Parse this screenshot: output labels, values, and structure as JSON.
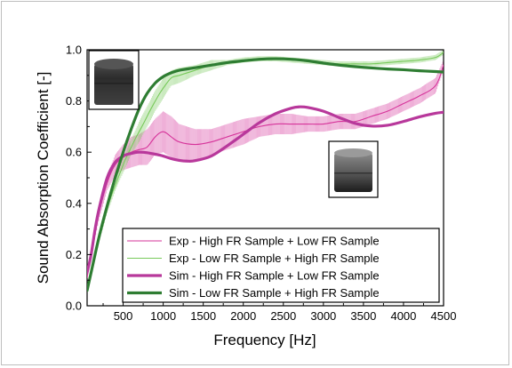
{
  "chart_data": {
    "type": "line",
    "title": "",
    "xlabel": "Frequency [Hz]",
    "ylabel": "Sound Absorption Coefficient [-]",
    "xlim": [
      50,
      4500
    ],
    "ylim": [
      0.0,
      1.0
    ],
    "xticks": [
      500,
      1000,
      1500,
      2000,
      2500,
      3000,
      3500,
      4000,
      4500
    ],
    "xtick_labels": [
      "500",
      "1000",
      "1500",
      "2000",
      "2500",
      "3000",
      "3500",
      "4000",
      "4500"
    ],
    "yticks": [
      0.0,
      0.2,
      0.4,
      0.6,
      0.8,
      1.0
    ],
    "ytick_labels": [
      "0.0",
      "0.2",
      "0.4",
      "0.6",
      "0.8",
      "1.0"
    ],
    "legend_position": "bottom-right",
    "series": [
      {
        "name": "Exp - High FR Sample + Low FR Sample",
        "color": "#d6339a",
        "style": "thin",
        "x": [
          50,
          100,
          200,
          300,
          400,
          500,
          600,
          700,
          800,
          900,
          1000,
          1100,
          1200,
          1400,
          1600,
          1800,
          2000,
          2200,
          2400,
          2600,
          2800,
          3000,
          3200,
          3400,
          3600,
          3800,
          4000,
          4200,
          4400,
          4500
        ],
        "y": [
          0.11,
          0.2,
          0.36,
          0.48,
          0.55,
          0.58,
          0.6,
          0.61,
          0.62,
          0.66,
          0.68,
          0.66,
          0.64,
          0.63,
          0.64,
          0.66,
          0.68,
          0.7,
          0.71,
          0.71,
          0.71,
          0.71,
          0.72,
          0.72,
          0.74,
          0.76,
          0.79,
          0.82,
          0.86,
          0.94
        ],
        "error": [
          0.0,
          0.01,
          0.02,
          0.03,
          0.04,
          0.05,
          0.06,
          0.06,
          0.07,
          0.07,
          0.08,
          0.08,
          0.07,
          0.06,
          0.05,
          0.05,
          0.05,
          0.04,
          0.04,
          0.04,
          0.03,
          0.03,
          0.03,
          0.03,
          0.03,
          0.03,
          0.03,
          0.03,
          0.03,
          0.02
        ]
      },
      {
        "name": "Exp - Low FR Sample + High FR Sample",
        "color": "#77c95a",
        "style": "thin",
        "x": [
          50,
          100,
          200,
          300,
          400,
          500,
          600,
          700,
          800,
          900,
          1000,
          1100,
          1200,
          1400,
          1600,
          1800,
          2000,
          2200,
          2400,
          2600,
          2800,
          3000,
          3200,
          3400,
          3600,
          3800,
          4000,
          4200,
          4400,
          4500
        ],
        "y": [
          0.07,
          0.14,
          0.27,
          0.38,
          0.47,
          0.55,
          0.62,
          0.68,
          0.74,
          0.8,
          0.85,
          0.89,
          0.9,
          0.92,
          0.94,
          0.95,
          0.96,
          0.965,
          0.965,
          0.96,
          0.955,
          0.95,
          0.945,
          0.945,
          0.945,
          0.95,
          0.955,
          0.96,
          0.97,
          0.99
        ],
        "error": [
          0.0,
          0.01,
          0.02,
          0.02,
          0.02,
          0.03,
          0.03,
          0.04,
          0.04,
          0.04,
          0.04,
          0.03,
          0.03,
          0.02,
          0.02,
          0.01,
          0.01,
          0.01,
          0.01,
          0.01,
          0.01,
          0.01,
          0.01,
          0.01,
          0.01,
          0.01,
          0.01,
          0.01,
          0.01,
          0.01
        ]
      },
      {
        "name": "Sim - High FR Sample + Low FR Sample",
        "color": "#b8389b",
        "style": "thick",
        "x": [
          50,
          100,
          150,
          200,
          300,
          400,
          500,
          600,
          700,
          800,
          900,
          1000,
          1100,
          1200,
          1300,
          1400,
          1600,
          1800,
          2000,
          2200,
          2400,
          2600,
          2700,
          2800,
          3000,
          3200,
          3400,
          3600,
          3800,
          4000,
          4200,
          4400,
          4500
        ],
        "y": [
          0.13,
          0.2,
          0.3,
          0.38,
          0.5,
          0.56,
          0.585,
          0.595,
          0.6,
          0.598,
          0.592,
          0.585,
          0.575,
          0.568,
          0.565,
          0.567,
          0.585,
          0.625,
          0.67,
          0.715,
          0.75,
          0.772,
          0.777,
          0.775,
          0.76,
          0.735,
          0.712,
          0.702,
          0.705,
          0.72,
          0.738,
          0.752,
          0.756
        ]
      },
      {
        "name": "Sim - Low FR Sample + High FR Sample",
        "color": "#2e7d32",
        "style": "thick",
        "x": [
          50,
          100,
          200,
          300,
          400,
          500,
          600,
          700,
          800,
          900,
          1000,
          1100,
          1200,
          1400,
          1600,
          1800,
          2000,
          2200,
          2400,
          2600,
          2800,
          3000,
          3200,
          3400,
          3600,
          3800,
          4000,
          4200,
          4400,
          4500
        ],
        "y": [
          0.06,
          0.13,
          0.27,
          0.39,
          0.5,
          0.6,
          0.69,
          0.77,
          0.83,
          0.87,
          0.895,
          0.91,
          0.92,
          0.93,
          0.94,
          0.95,
          0.957,
          0.963,
          0.965,
          0.963,
          0.957,
          0.948,
          0.94,
          0.934,
          0.929,
          0.925,
          0.922,
          0.918,
          0.915,
          0.913
        ]
      }
    ]
  },
  "insets": {
    "top_left": {
      "name": "sample-photo-low-fr-top",
      "color_top": "#2b2b2b",
      "color_bottom": "#3a3a3a"
    },
    "bottom_right": {
      "name": "sample-photo-high-fr-top",
      "color_top": "#5a5a5a",
      "color_bottom": "#1f1f1f"
    }
  }
}
